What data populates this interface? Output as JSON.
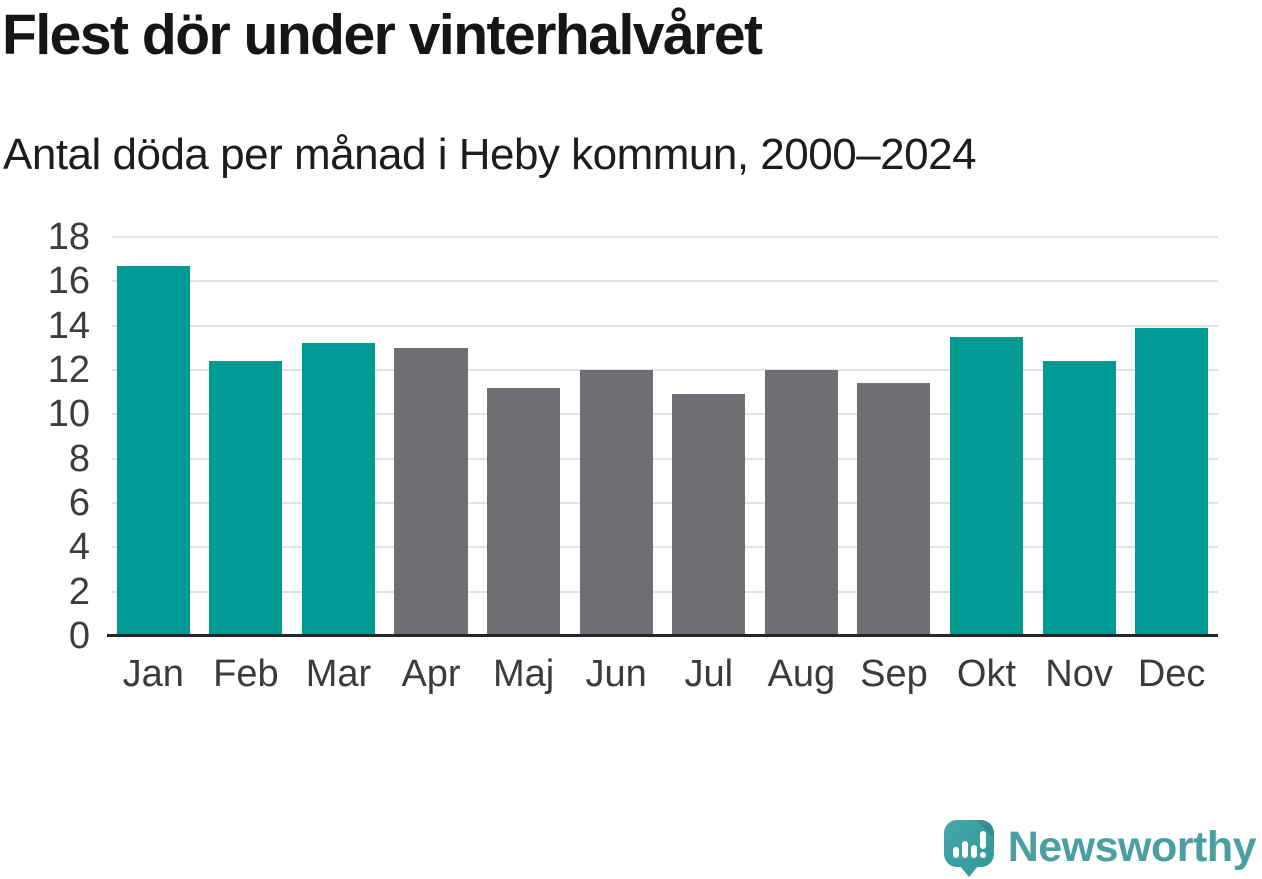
{
  "title": "Flest dör under vinterhalvåret",
  "subtitle": "Antal döda per månad i Heby kommun, 2000–2024",
  "colors": {
    "highlight_teal": "#009a94",
    "neutral_gray": "#6e6e73",
    "gridline": "#e3e3e3",
    "axis_line": "#262626",
    "brand_teal": "#4b9ea1"
  },
  "chart_data": {
    "type": "bar",
    "title": "Flest dör under vinterhalvåret",
    "subtitle": "Antal döda per månad i Heby kommun, 2000–2024",
    "categories": [
      "Jan",
      "Feb",
      "Mar",
      "Apr",
      "Maj",
      "Jun",
      "Jul",
      "Aug",
      "Sep",
      "Okt",
      "Nov",
      "Dec"
    ],
    "values": [
      16.7,
      12.4,
      13.2,
      13.0,
      11.2,
      12.0,
      10.9,
      12.0,
      11.4,
      13.5,
      12.4,
      13.9
    ],
    "highlighted": [
      true,
      true,
      true,
      false,
      false,
      false,
      false,
      false,
      false,
      true,
      true,
      true
    ],
    "highlight_meaning": "winter half-year months (teal), summer half-year months (gray)",
    "xlabel": "",
    "ylabel": "",
    "ylim": [
      0,
      18
    ],
    "yticks": [
      0,
      2,
      4,
      6,
      8,
      10,
      12,
      14,
      16,
      18
    ],
    "grid": true,
    "legend": false
  },
  "branding": {
    "icon": "newsworthy-speech-bubble-bar-chart-icon",
    "name": "Newsworthy"
  }
}
